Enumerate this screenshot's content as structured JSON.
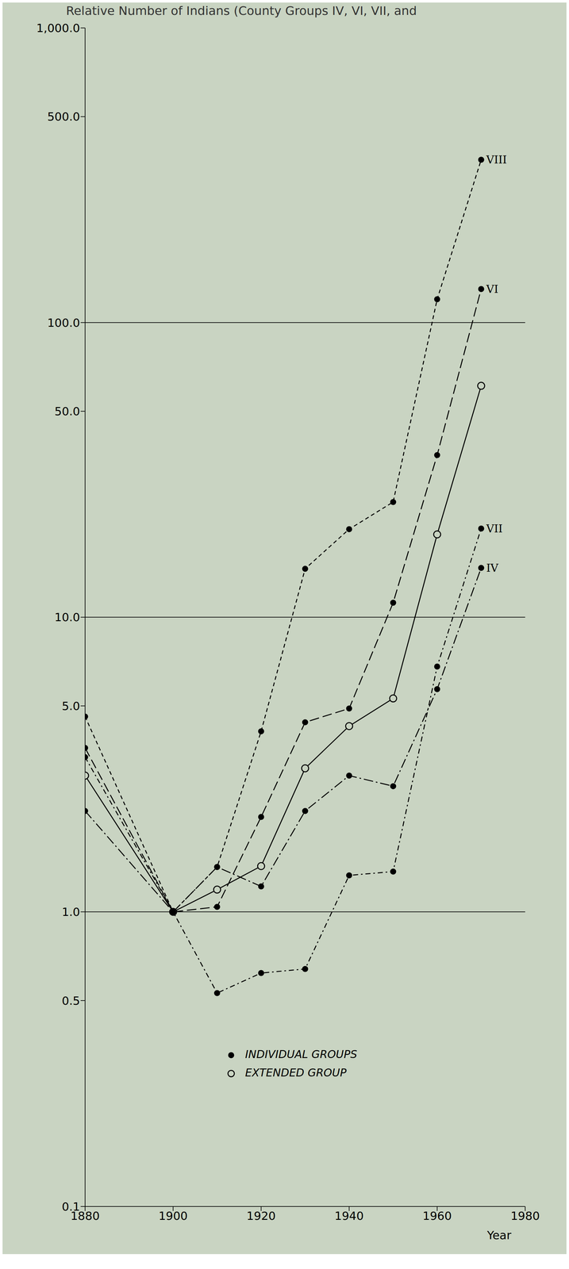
{
  "chart_data": {
    "type": "line",
    "title": "Relative Number of Indians (County Groups IV, VI, VII, and",
    "x_label": "Year",
    "x": [
      1880,
      1900,
      1910,
      1920,
      1930,
      1940,
      1950,
      1960,
      1970
    ],
    "series": [
      {
        "name": "VIII",
        "color": "#000000",
        "marker": "filled",
        "line_style": "dashed",
        "values": [
          4.6,
          1.0,
          1.42,
          4.1,
          14.6,
          19.9,
          24.6,
          120,
          357
        ]
      },
      {
        "name": "VI",
        "color": "#000000",
        "marker": "filled",
        "line_style": "long_dashed",
        "values": [
          3.6,
          1.0,
          1.04,
          2.1,
          4.4,
          4.9,
          11.2,
          35.5,
          130
        ]
      },
      {
        "name": "EXTENDED GROUP",
        "color": "#000000",
        "marker": "open",
        "line_style": "solid",
        "values": [
          2.9,
          1.0,
          1.19,
          1.43,
          3.07,
          4.27,
          5.3,
          19.1,
          61
        ]
      },
      {
        "name": "VII",
        "color": "#000000",
        "marker": "filled",
        "line_style": "dash_dot_dot",
        "values": [
          3.35,
          1.0,
          0.53,
          0.62,
          0.64,
          1.33,
          1.37,
          6.8,
          20
        ]
      },
      {
        "name": "IV",
        "color": "#000000",
        "marker": "filled",
        "line_style": "dash_dot",
        "values": [
          2.2,
          1.0,
          1.42,
          1.22,
          2.2,
          2.9,
          2.67,
          5.7,
          14.7
        ]
      }
    ],
    "legend_entries": [
      {
        "label": "INDIVIDUAL GROUPS",
        "marker": "filled"
      },
      {
        "label": "EXTENDED GROUP",
        "marker": "open"
      }
    ],
    "legend": "lower right",
    "log": "y",
    "grid": true,
    "xlim": [
      1880,
      1980
    ],
    "xticks": [
      1880,
      1900,
      1920,
      1940,
      1960,
      1980
    ],
    "ylim": [
      0.1,
      1000
    ],
    "yticks": [
      {
        "value": 0.1,
        "label": "0.1"
      },
      {
        "value": 0.5,
        "label": "0.5"
      },
      {
        "value": 1,
        "label": "1.0"
      },
      {
        "value": 5,
        "label": "5.0"
      },
      {
        "value": 10,
        "label": "10.0"
      },
      {
        "value": 50,
        "label": "50.0"
      },
      {
        "value": 100,
        "label": "100.0"
      },
      {
        "value": 500,
        "label": "500.0"
      },
      {
        "value": 1000,
        "label": "1,000.0"
      }
    ]
  }
}
